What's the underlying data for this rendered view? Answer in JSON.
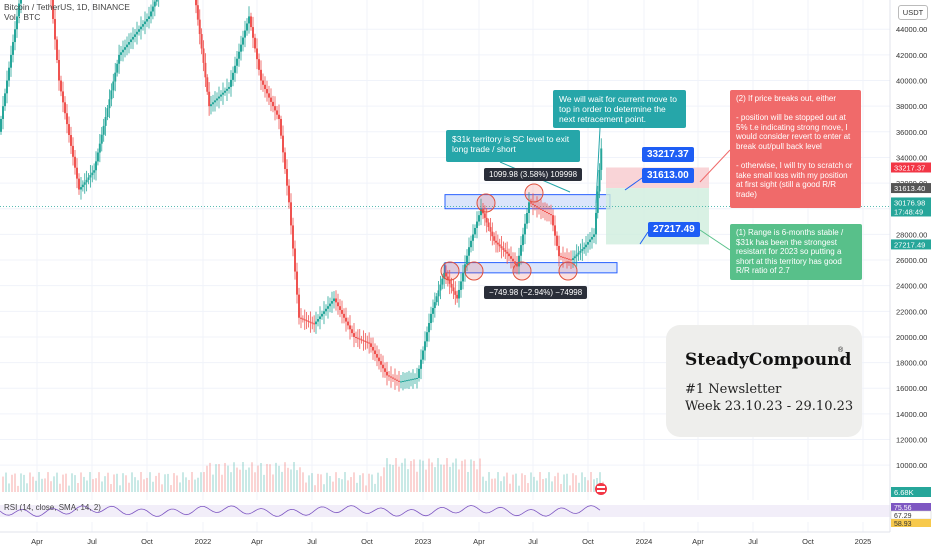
{
  "header": {
    "title": "Bitcoin / TetherUS, 1D, BINANCE",
    "subtitle": "Vol · BTC"
  },
  "currency_button": "USDT",
  "rsi_label": "RSI (14, close, SMA, 14, 2)",
  "chart_data": {
    "type": "line",
    "price_axis_ticks": [
      "44000.00",
      "42000.00",
      "40000.00",
      "38000.00",
      "36000.00",
      "34000.00",
      "32000.00",
      "30000.00",
      "28000.00",
      "26000.00",
      "24000.00",
      "22000.00",
      "20000.00",
      "18000.00",
      "16000.00",
      "14000.00",
      "12000.00",
      "10000.00"
    ],
    "price_axis_labels": [
      "33217.37",
      "31613.40",
      "30176.98",
      "17:48:49",
      "27217.49",
      "6.68K"
    ],
    "rsi_axis_labels": [
      "75.56",
      "67.29",
      "58.93"
    ],
    "time_axis_labels": [
      "Apr",
      "Jul",
      "Oct",
      "2022",
      "Apr",
      "Jul",
      "Oct",
      "2023",
      "Apr",
      "Jul",
      "Oct",
      "2024",
      "Apr",
      "Jul",
      "Oct",
      "2025"
    ],
    "ylim": [
      9000,
      45500
    ],
    "series": [
      {
        "values": [
          [
            0,
            36000
          ],
          [
            40,
            56000
          ],
          [
            60,
            40000
          ],
          [
            80,
            31500
          ],
          [
            95,
            33000
          ],
          [
            120,
            42000
          ],
          [
            150,
            45000
          ],
          [
            175,
            50000
          ],
          [
            195,
            47000
          ],
          [
            210,
            38000
          ],
          [
            230,
            39500
          ],
          [
            250,
            45000
          ],
          [
            262,
            40000
          ],
          [
            280,
            37000
          ],
          [
            290,
            30500
          ],
          [
            300,
            21500
          ],
          [
            315,
            21000
          ],
          [
            335,
            23000
          ],
          [
            355,
            20000
          ],
          [
            370,
            19500
          ],
          [
            388,
            17000
          ],
          [
            400,
            16500
          ],
          [
            418,
            16800
          ],
          [
            432,
            21800
          ],
          [
            445,
            25000
          ],
          [
            458,
            23000
          ],
          [
            470,
            27000
          ],
          [
            482,
            30000
          ],
          [
            495,
            27500
          ],
          [
            508,
            26500
          ],
          [
            518,
            25500
          ],
          [
            530,
            30500
          ],
          [
            540,
            30000
          ],
          [
            552,
            29500
          ],
          [
            560,
            26300
          ],
          [
            572,
            26000
          ],
          [
            585,
            27000
          ],
          [
            595,
            28000
          ],
          [
            602,
            34700
          ]
        ]
      }
    ],
    "levels": {
      "range_top_band": [
        30000,
        31100
      ],
      "range_bottom_band": [
        25000,
        25800
      ],
      "target": 33217.37,
      "entry": 31613.0,
      "stop": 27217.49
    },
    "measure_top": "1099.98 (3.58%) 109998",
    "measure_bottom": "−749.98 (−2.94%) −74998"
  },
  "annotations": {
    "note_wait": "We will wait for current move to top in order to determine the next retracement point.",
    "note_31k": "$31k territory is SC level to exit long trade / short",
    "note_breakout": "(2) If price breaks out, either\n\n- position will be stopped out at 5% t.e indicating strong move, I would consider revert to enter at break out/pull back level\n\n- otherwise, I will try to scratch or take small loss with my position at first sight (still a good R/R trade)",
    "note_range": "(1) Range is 6-months stable / $31k has been the strongest resistant for 2023 so putting a short at this territory has good R/R ratio of 2.7",
    "tag_target": "33217.37",
    "tag_entry": "31613.00",
    "tag_stop": "27217.49"
  },
  "brand_card": {
    "name": "SteadyCompound",
    "mark": "®",
    "line1": "#1 Newsletter",
    "line2": "Week 23.10.23 - 29.10.23"
  },
  "colors": {
    "up": "#26a69a",
    "down": "#ef5350",
    "range_band": "#2962ff",
    "note_teal": "#26a6a9",
    "note_red": "#f06a6a",
    "note_green": "#58c08a",
    "tag_blue": "#1e5ef5"
  }
}
